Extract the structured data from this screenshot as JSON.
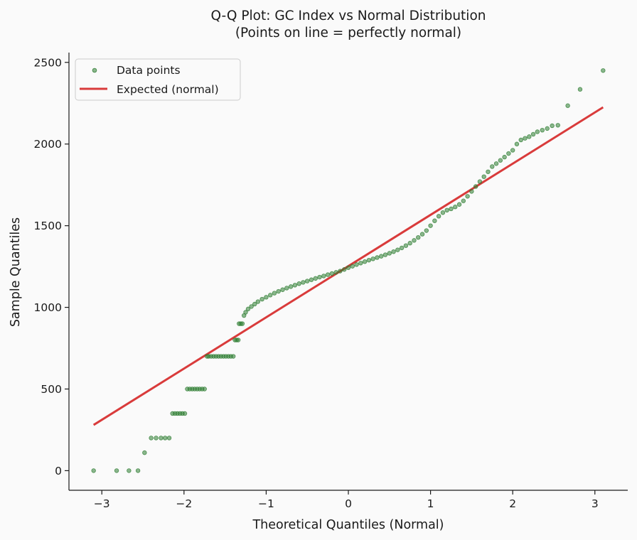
{
  "chart_data": {
    "type": "scatter",
    "title": "Q-Q Plot: GC Index vs Normal Distribution",
    "subtitle": "(Points on line = perfectly normal)",
    "xlabel": "Theoretical Quantiles (Normal)",
    "ylabel": "Sample Quantiles",
    "xlim": [
      -3.4,
      3.4
    ],
    "ylim": [
      -120,
      2560
    ],
    "xticks": [
      -3,
      -2,
      -1,
      0,
      1,
      2,
      3
    ],
    "xtick_labels": [
      "−3",
      "−2",
      "−1",
      "0",
      "1",
      "2",
      "3"
    ],
    "yticks": [
      0,
      500,
      1000,
      1500,
      2000,
      2500
    ],
    "ytick_labels": [
      "0",
      "500",
      "1000",
      "1500",
      "2000",
      "2500"
    ],
    "grid": false,
    "legend_position": "top-left",
    "series": [
      {
        "name": "Data points",
        "kind": "scatter",
        "color": "#2e7d32",
        "points": [
          [
            -3.1,
            0
          ],
          [
            -2.82,
            0
          ],
          [
            -2.67,
            0
          ],
          [
            -2.56,
            0
          ],
          [
            -2.48,
            110
          ],
          [
            -2.4,
            200
          ],
          [
            -2.34,
            200
          ],
          [
            -2.28,
            200
          ],
          [
            -2.23,
            200
          ],
          [
            -2.18,
            200
          ],
          [
            -2.14,
            350
          ],
          [
            -2.11,
            350
          ],
          [
            -2.08,
            350
          ],
          [
            -2.05,
            350
          ],
          [
            -2.02,
            350
          ],
          [
            -1.99,
            350
          ],
          [
            -1.96,
            500
          ],
          [
            -1.93,
            500
          ],
          [
            -1.9,
            500
          ],
          [
            -1.87,
            500
          ],
          [
            -1.84,
            500
          ],
          [
            -1.81,
            500
          ],
          [
            -1.78,
            500
          ],
          [
            -1.75,
            500
          ],
          [
            -1.72,
            700
          ],
          [
            -1.7,
            700
          ],
          [
            -1.67,
            700
          ],
          [
            -1.64,
            700
          ],
          [
            -1.61,
            700
          ],
          [
            -1.58,
            700
          ],
          [
            -1.55,
            700
          ],
          [
            -1.52,
            700
          ],
          [
            -1.49,
            700
          ],
          [
            -1.46,
            700
          ],
          [
            -1.43,
            700
          ],
          [
            -1.4,
            700
          ],
          [
            -1.38,
            800
          ],
          [
            -1.36,
            800
          ],
          [
            -1.34,
            800
          ],
          [
            -1.33,
            900
          ],
          [
            -1.31,
            900
          ],
          [
            -1.29,
            900
          ],
          [
            -1.27,
            950
          ],
          [
            -1.25,
            970
          ],
          [
            -1.22,
            990
          ],
          [
            -1.18,
            1005
          ],
          [
            -1.14,
            1020
          ],
          [
            -1.1,
            1035
          ],
          [
            -1.05,
            1050
          ],
          [
            -1.0,
            1062
          ],
          [
            -0.95,
            1075
          ],
          [
            -0.9,
            1087
          ],
          [
            -0.85,
            1098
          ],
          [
            -0.8,
            1108
          ],
          [
            -0.75,
            1118
          ],
          [
            -0.7,
            1127
          ],
          [
            -0.65,
            1136
          ],
          [
            -0.6,
            1145
          ],
          [
            -0.55,
            1153
          ],
          [
            -0.5,
            1161
          ],
          [
            -0.45,
            1169
          ],
          [
            -0.4,
            1177
          ],
          [
            -0.35,
            1185
          ],
          [
            -0.3,
            1192
          ],
          [
            -0.25,
            1200
          ],
          [
            -0.2,
            1207
          ],
          [
            -0.15,
            1214
          ],
          [
            -0.1,
            1222
          ],
          [
            -0.05,
            1232
          ],
          [
            0.0,
            1243
          ],
          [
            0.05,
            1252
          ],
          [
            0.1,
            1262
          ],
          [
            0.15,
            1271
          ],
          [
            0.2,
            1280
          ],
          [
            0.25,
            1289
          ],
          [
            0.3,
            1297
          ],
          [
            0.35,
            1305
          ],
          [
            0.4,
            1313
          ],
          [
            0.45,
            1322
          ],
          [
            0.5,
            1331
          ],
          [
            0.55,
            1341
          ],
          [
            0.6,
            1352
          ],
          [
            0.65,
            1364
          ],
          [
            0.7,
            1378
          ],
          [
            0.75,
            1393
          ],
          [
            0.8,
            1410
          ],
          [
            0.85,
            1428
          ],
          [
            0.9,
            1448
          ],
          [
            0.95,
            1470
          ],
          [
            1.0,
            1500
          ],
          [
            1.05,
            1530
          ],
          [
            1.1,
            1558
          ],
          [
            1.15,
            1580
          ],
          [
            1.2,
            1595
          ],
          [
            1.25,
            1603
          ],
          [
            1.3,
            1615
          ],
          [
            1.35,
            1630
          ],
          [
            1.4,
            1652
          ],
          [
            1.45,
            1680
          ],
          [
            1.5,
            1710
          ],
          [
            1.55,
            1740
          ],
          [
            1.6,
            1770
          ],
          [
            1.65,
            1800
          ],
          [
            1.7,
            1830
          ],
          [
            1.75,
            1862
          ],
          [
            1.8,
            1880
          ],
          [
            1.85,
            1900
          ],
          [
            1.9,
            1920
          ],
          [
            1.95,
            1942
          ],
          [
            2.0,
            1962
          ],
          [
            2.05,
            2000
          ],
          [
            2.1,
            2025
          ],
          [
            2.15,
            2035
          ],
          [
            2.2,
            2045
          ],
          [
            2.25,
            2060
          ],
          [
            2.3,
            2075
          ],
          [
            2.36,
            2085
          ],
          [
            2.42,
            2095
          ],
          [
            2.48,
            2112
          ],
          [
            2.55,
            2115
          ],
          [
            2.67,
            2235
          ],
          [
            2.82,
            2335
          ],
          [
            3.1,
            2450
          ]
        ]
      },
      {
        "name": "Expected (normal)",
        "kind": "line",
        "color": "#d93b3b",
        "points": [
          [
            -3.1,
            280
          ],
          [
            3.1,
            2225
          ]
        ]
      }
    ]
  }
}
